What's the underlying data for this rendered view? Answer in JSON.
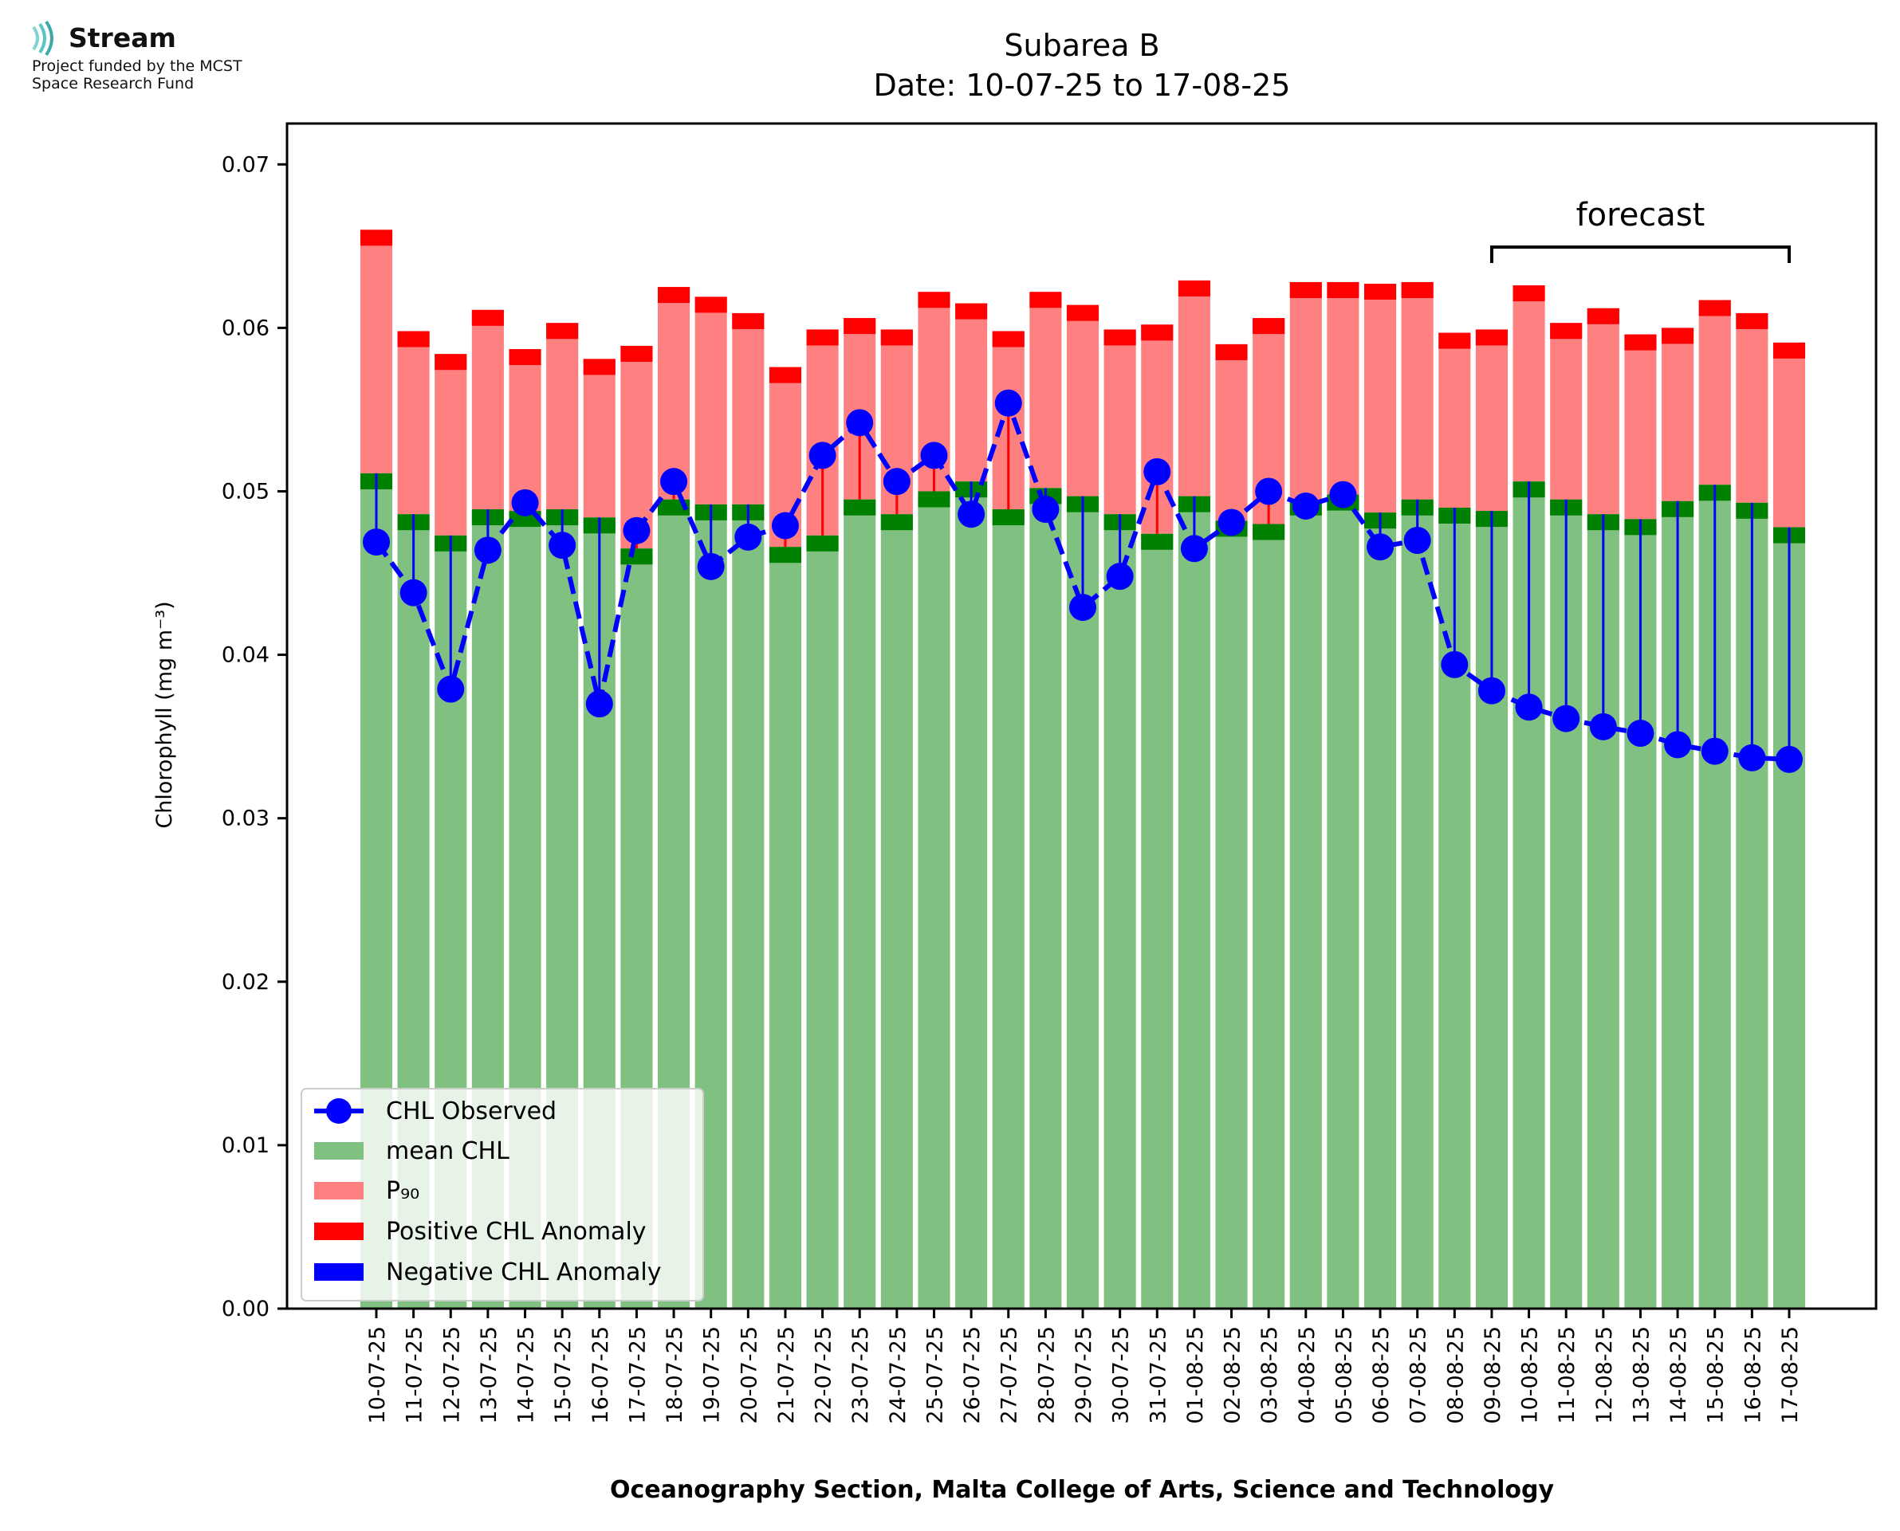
{
  "logo": {
    "name": "Stream",
    "line1": "Project funded by the MCST",
    "line2": "Space Research Fund"
  },
  "chart_data": {
    "type": "bar",
    "title": "Subarea B",
    "subtitle": "Date: 10-07-25 to 17-08-25",
    "xlabel": "Oceanography Section, Malta College of Arts, Science and Technology",
    "ylabel": "Chlorophyll (mg m⁻³)",
    "ylim": [
      0,
      0.0725
    ],
    "yticks": [
      "0.00",
      "0.01",
      "0.02",
      "0.03",
      "0.04",
      "0.05",
      "0.06",
      "0.07"
    ],
    "grid": false,
    "legend_position": "lower-left",
    "forecast_label": "forecast",
    "forecast_start": "09-08-25",
    "forecast_end": "17-08-25",
    "colors": {
      "mean": "#80c080",
      "mean_cap": "#008000",
      "p90": "#ff8080",
      "p90_cap": "#ff0000",
      "observed": "#0000ff",
      "positive_anomaly": "#ff0000",
      "negative_anomaly": "#0000ff"
    },
    "legend": [
      {
        "label": "CHL Observed",
        "key": "observed"
      },
      {
        "label": "mean CHL",
        "key": "mean"
      },
      {
        "label": "P₉₀",
        "key": "p90"
      },
      {
        "label": "Positive CHL Anomaly",
        "key": "positive_anomaly"
      },
      {
        "label": "Negative CHL Anomaly",
        "key": "negative_anomaly"
      }
    ],
    "categories": [
      "10-07-25",
      "11-07-25",
      "12-07-25",
      "13-07-25",
      "14-07-25",
      "15-07-25",
      "16-07-25",
      "17-07-25",
      "18-07-25",
      "19-07-25",
      "20-07-25",
      "21-07-25",
      "22-07-25",
      "23-07-25",
      "24-07-25",
      "25-07-25",
      "26-07-25",
      "27-07-25",
      "28-07-25",
      "29-07-25",
      "30-07-25",
      "31-07-25",
      "01-08-25",
      "02-08-25",
      "03-08-25",
      "04-08-25",
      "05-08-25",
      "06-08-25",
      "07-08-25",
      "08-08-25",
      "09-08-25",
      "10-08-25",
      "11-08-25",
      "12-08-25",
      "13-08-25",
      "14-08-25",
      "15-08-25",
      "16-08-25",
      "17-08-25"
    ],
    "series": [
      {
        "name": "mean CHL",
        "values": [
          0.0511,
          0.0486,
          0.0473,
          0.0489,
          0.0488,
          0.0489,
          0.0484,
          0.0465,
          0.0495,
          0.0492,
          0.0492,
          0.0466,
          0.0473,
          0.0495,
          0.0486,
          0.05,
          0.0506,
          0.0489,
          0.0502,
          0.0497,
          0.0486,
          0.0474,
          0.0497,
          0.0482,
          0.048,
          0.0495,
          0.0498,
          0.0487,
          0.0495,
          0.049,
          0.0488,
          0.0506,
          0.0495,
          0.0486,
          0.0483,
          0.0494,
          0.0504,
          0.0493,
          0.0478
        ]
      },
      {
        "name": "P₉₀",
        "values": [
          0.066,
          0.0598,
          0.0584,
          0.0611,
          0.0587,
          0.0603,
          0.0581,
          0.0589,
          0.0625,
          0.0619,
          0.0609,
          0.0576,
          0.0599,
          0.0606,
          0.0599,
          0.0622,
          0.0615,
          0.0598,
          0.0622,
          0.0614,
          0.0599,
          0.0602,
          0.0629,
          0.059,
          0.0606,
          0.0628,
          0.0628,
          0.0627,
          0.0628,
          0.0597,
          0.0599,
          0.0626,
          0.0603,
          0.0612,
          0.0596,
          0.06,
          0.0617,
          0.0609,
          0.0591
        ]
      },
      {
        "name": "CHL Observed",
        "values": [
          0.0469,
          0.0438,
          0.0379,
          0.0464,
          0.0493,
          0.0467,
          0.037,
          0.0476,
          0.0506,
          0.0454,
          0.0472,
          0.0479,
          0.0522,
          0.0542,
          0.0506,
          0.0522,
          0.0486,
          0.0554,
          0.0489,
          0.0429,
          0.0448,
          0.0512,
          0.0465,
          0.0481,
          0.05,
          0.0491,
          0.0498,
          0.0466,
          0.047,
          0.0394,
          0.0378,
          0.0368,
          0.0361,
          0.0356,
          0.0352,
          0.0345,
          0.0341,
          0.0337,
          0.0336
        ]
      }
    ]
  }
}
